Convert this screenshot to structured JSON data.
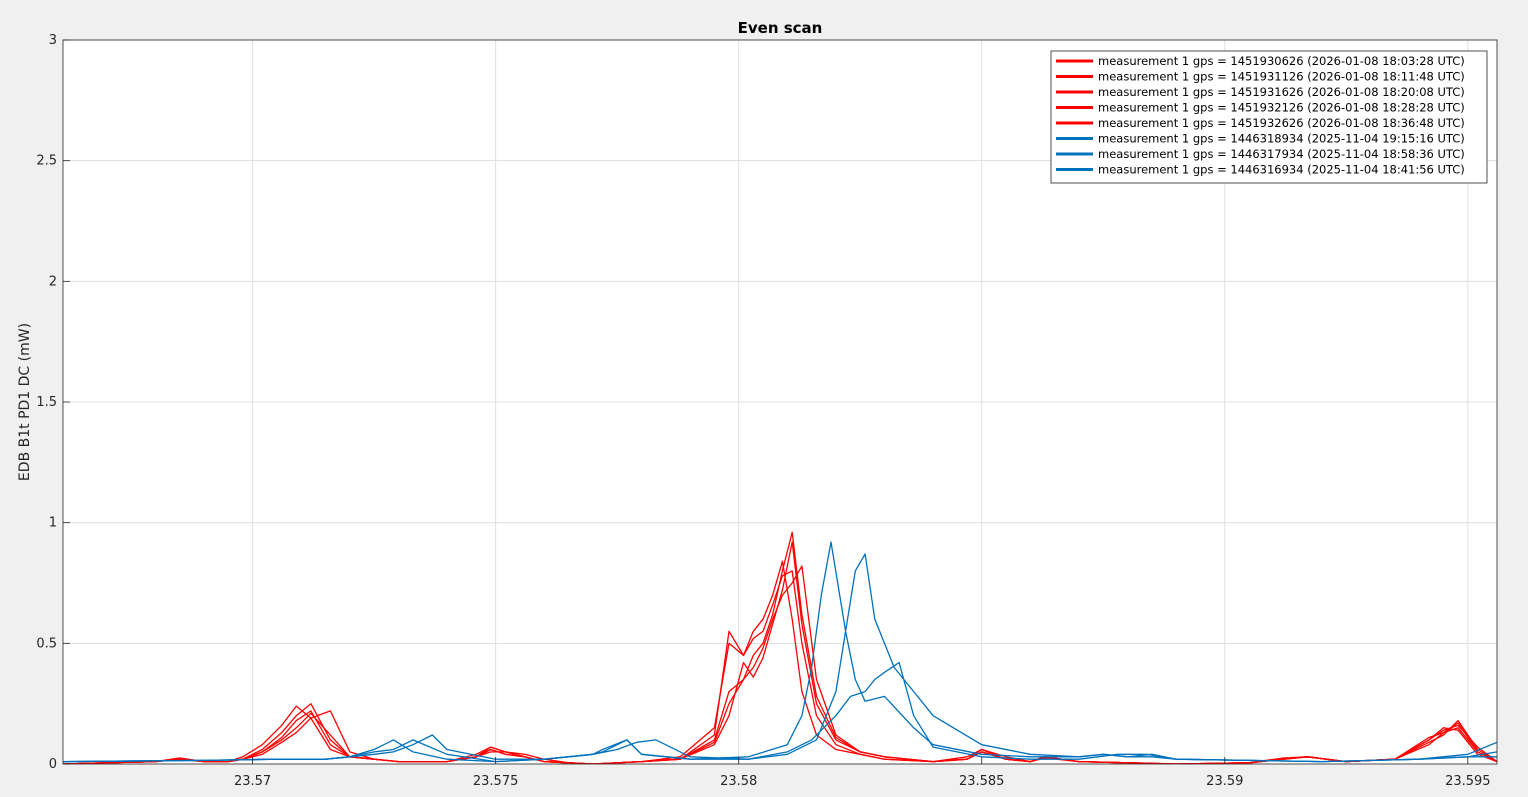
{
  "figure": {
    "background": "#f0f0f0",
    "axes_background": "#ffffff"
  },
  "chart_data": {
    "type": "line",
    "title": "Even scan",
    "xlabel": "",
    "ylabel": "EDB B1t PD1 DC (mW)",
    "xlim": [
      23.5661,
      23.5956
    ],
    "ylim": [
      0,
      3
    ],
    "xticks": [
      23.57,
      23.575,
      23.58,
      23.585,
      23.59,
      23.595
    ],
    "xtick_labels": [
      "23.57",
      "23.575",
      "23.58",
      "23.585",
      "23.59",
      "23.595"
    ],
    "yticks": [
      0,
      0.5,
      1,
      1.5,
      2,
      2.5,
      3
    ],
    "ytick_labels": [
      "0",
      "0.5",
      "1",
      "1.5",
      "2",
      "2.5",
      "3"
    ],
    "grid": true,
    "legend_position": "top-right",
    "series": [
      {
        "name": "measurement 1 gps = 1451930626 (2026-01-08 18:03:28 UTC)",
        "color": "#ff0000",
        "x": [
          23.5661,
          23.567,
          23.568,
          23.5685,
          23.569,
          23.5695,
          23.5698,
          23.5702,
          23.5706,
          23.5709,
          23.5712,
          23.5716,
          23.572,
          23.5725,
          23.573,
          23.574,
          23.5746,
          23.5749,
          23.5752,
          23.5756,
          23.576,
          23.5765,
          23.577,
          23.578,
          23.5788,
          23.5795,
          23.5798,
          23.5801,
          23.5803,
          23.5805,
          23.5807,
          23.5809,
          23.5811,
          23.5813,
          23.5816,
          23.582,
          23.5825,
          23.583,
          23.584,
          23.5847,
          23.585,
          23.5855,
          23.586,
          23.5863,
          23.587,
          23.588,
          23.589,
          23.5905,
          23.5912,
          23.5917,
          23.5925,
          23.5935,
          23.5942,
          23.5945,
          23.5948,
          23.5952,
          23.5956
        ],
        "y": [
          0,
          0.005,
          0.01,
          0.02,
          0.01,
          0.01,
          0.02,
          0.05,
          0.11,
          0.18,
          0.22,
          0.08,
          0.03,
          0.02,
          0.01,
          0.01,
          0.03,
          0.06,
          0.04,
          0.03,
          0.01,
          0.005,
          0,
          0.01,
          0.02,
          0.08,
          0.2,
          0.42,
          0.36,
          0.44,
          0.58,
          0.72,
          0.92,
          0.58,
          0.25,
          0.1,
          0.05,
          0.03,
          0.01,
          0.02,
          0.05,
          0.02,
          0.01,
          0.03,
          0.01,
          0.005,
          0,
          0.005,
          0.02,
          0.03,
          0.01,
          0.02,
          0.08,
          0.13,
          0.17,
          0.05,
          0.01
        ]
      },
      {
        "name": "measurement 1 gps = 1451931126 (2026-01-08 18:11:48 UTC)",
        "color": "#ff0000",
        "x": [
          23.5661,
          23.567,
          23.568,
          23.5685,
          23.569,
          23.5695,
          23.5698,
          23.5702,
          23.5706,
          23.5709,
          23.5712,
          23.5716,
          23.572,
          23.5725,
          23.573,
          23.574,
          23.5746,
          23.5749,
          23.5752,
          23.5756,
          23.576,
          23.5765,
          23.577,
          23.578,
          23.5788,
          23.5795,
          23.5798,
          23.5801,
          23.5803,
          23.5805,
          23.5807,
          23.5809,
          23.5811,
          23.5813,
          23.5816,
          23.582,
          23.5825,
          23.583,
          23.584,
          23.5847,
          23.585,
          23.5855,
          23.586,
          23.5863,
          23.587,
          23.588,
          23.589,
          23.5905,
          23.5912,
          23.5917,
          23.5925,
          23.5935,
          23.5942,
          23.5945,
          23.5948,
          23.5952,
          23.5956
        ],
        "y": [
          0,
          0.005,
          0.01,
          0.025,
          0.01,
          0.01,
          0.03,
          0.08,
          0.16,
          0.24,
          0.19,
          0.06,
          0.03,
          0.02,
          0.01,
          0.01,
          0.04,
          0.07,
          0.05,
          0.03,
          0.01,
          0.005,
          0,
          0.01,
          0.03,
          0.15,
          0.5,
          0.45,
          0.55,
          0.6,
          0.7,
          0.84,
          0.6,
          0.3,
          0.12,
          0.06,
          0.04,
          0.02,
          0.01,
          0.03,
          0.06,
          0.02,
          0.01,
          0.03,
          0.01,
          0.005,
          0,
          0.005,
          0.025,
          0.03,
          0.01,
          0.02,
          0.1,
          0.15,
          0.14,
          0.04,
          0.01
        ]
      },
      {
        "name": "measurement 1 gps = 1451931626 (2026-01-08 18:20:08 UTC)",
        "color": "#ff0000",
        "x": [
          23.5661,
          23.567,
          23.568,
          23.5685,
          23.569,
          23.5695,
          23.5698,
          23.5702,
          23.5706,
          23.5709,
          23.5712,
          23.5716,
          23.572,
          23.5725,
          23.573,
          23.574,
          23.5746,
          23.5749,
          23.5752,
          23.5756,
          23.576,
          23.5765,
          23.577,
          23.578,
          23.5788,
          23.5795,
          23.5798,
          23.5801,
          23.5803,
          23.5805,
          23.5807,
          23.5809,
          23.5811,
          23.5813,
          23.5816,
          23.582,
          23.5825,
          23.583,
          23.584,
          23.5847,
          23.585,
          23.5855,
          23.586,
          23.5863,
          23.587,
          23.588,
          23.589,
          23.5905,
          23.5912,
          23.5917,
          23.5925,
          23.5935,
          23.5942,
          23.5945,
          23.5948,
          23.5952,
          23.5956
        ],
        "y": [
          0,
          0.005,
          0.01,
          0.02,
          0.01,
          0.01,
          0.02,
          0.06,
          0.13,
          0.2,
          0.25,
          0.1,
          0.03,
          0.02,
          0.01,
          0.01,
          0.03,
          0.05,
          0.05,
          0.04,
          0.02,
          0.005,
          0,
          0.01,
          0.02,
          0.1,
          0.3,
          0.35,
          0.45,
          0.5,
          0.62,
          0.8,
          0.96,
          0.62,
          0.28,
          0.11,
          0.05,
          0.03,
          0.01,
          0.02,
          0.05,
          0.02,
          0.01,
          0.025,
          0.01,
          0.005,
          0,
          0.005,
          0.02,
          0.03,
          0.01,
          0.02,
          0.09,
          0.12,
          0.18,
          0.06,
          0.01
        ]
      },
      {
        "name": "measurement 1 gps = 1451932126 (2026-01-08 18:28:28 UTC)",
        "color": "#ff0000",
        "x": [
          23.5661,
          23.567,
          23.568,
          23.5685,
          23.569,
          23.5695,
          23.5698,
          23.5702,
          23.5706,
          23.5709,
          23.5712,
          23.5716,
          23.572,
          23.5725,
          23.573,
          23.574,
          23.5746,
          23.5749,
          23.5752,
          23.5756,
          23.576,
          23.5765,
          23.577,
          23.578,
          23.5788,
          23.5795,
          23.5798,
          23.5801,
          23.5803,
          23.5805,
          23.5807,
          23.5809,
          23.5811,
          23.5813,
          23.5816,
          23.582,
          23.5825,
          23.583,
          23.584,
          23.5847,
          23.585,
          23.5855,
          23.586,
          23.5863,
          23.587,
          23.588,
          23.589,
          23.5905,
          23.5912,
          23.5917,
          23.5925,
          23.5935,
          23.5942,
          23.5945,
          23.5948,
          23.5952,
          23.5956
        ],
        "y": [
          0,
          0.005,
          0.01,
          0.025,
          0.01,
          0.01,
          0.02,
          0.05,
          0.1,
          0.15,
          0.21,
          0.12,
          0.03,
          0.02,
          0.01,
          0.01,
          0.03,
          0.06,
          0.04,
          0.03,
          0.01,
          0.005,
          0,
          0.01,
          0.02,
          0.12,
          0.55,
          0.45,
          0.52,
          0.55,
          0.66,
          0.78,
          0.8,
          0.5,
          0.2,
          0.08,
          0.04,
          0.02,
          0.01,
          0.02,
          0.06,
          0.03,
          0.01,
          0.03,
          0.01,
          0.005,
          0,
          0.005,
          0.02,
          0.03,
          0.01,
          0.02,
          0.11,
          0.13,
          0.15,
          0.05,
          0.01
        ]
      },
      {
        "name": "measurement 1 gps = 1451932626 (2026-01-08 18:36:48 UTC)",
        "color": "#ff0000",
        "x": [
          23.5661,
          23.567,
          23.568,
          23.5685,
          23.569,
          23.5695,
          23.5698,
          23.5702,
          23.5706,
          23.5709,
          23.5712,
          23.5716,
          23.572,
          23.5725,
          23.573,
          23.574,
          23.5746,
          23.5749,
          23.5752,
          23.5756,
          23.576,
          23.5765,
          23.577,
          23.578,
          23.5788,
          23.5795,
          23.5798,
          23.5801,
          23.5803,
          23.5805,
          23.5807,
          23.5809,
          23.5811,
          23.5813,
          23.5816,
          23.582,
          23.5825,
          23.583,
          23.584,
          23.5847,
          23.585,
          23.5855,
          23.586,
          23.5863,
          23.587,
          23.588,
          23.589,
          23.5905,
          23.5912,
          23.5917,
          23.5925,
          23.5935,
          23.5942,
          23.5945,
          23.5948,
          23.5952,
          23.5956
        ],
        "y": [
          0,
          0.005,
          0.01,
          0.02,
          0.01,
          0.01,
          0.02,
          0.04,
          0.09,
          0.13,
          0.19,
          0.22,
          0.05,
          0.02,
          0.01,
          0.01,
          0.03,
          0.07,
          0.05,
          0.03,
          0.01,
          0.005,
          0,
          0.01,
          0.02,
          0.09,
          0.25,
          0.35,
          0.4,
          0.48,
          0.6,
          0.7,
          0.75,
          0.82,
          0.35,
          0.12,
          0.05,
          0.03,
          0.01,
          0.02,
          0.05,
          0.02,
          0.01,
          0.03,
          0.01,
          0.005,
          0,
          0.005,
          0.02,
          0.03,
          0.01,
          0.02,
          0.1,
          0.14,
          0.16,
          0.07,
          0.01
        ]
      },
      {
        "name": "measurement 1 gps = 1446318934 (2025-11-04 19:15:16 UTC)",
        "color": "#0072bd",
        "x": [
          23.5661,
          23.569,
          23.5705,
          23.5715,
          23.572,
          23.5725,
          23.5729,
          23.5733,
          23.574,
          23.575,
          23.576,
          23.5765,
          23.577,
          23.5725,
          23.5772,
          23.5777,
          23.578,
          23.579,
          23.5802,
          23.581,
          23.5816,
          23.582,
          23.5822,
          23.5824,
          23.5826,
          23.5828,
          23.5832,
          23.5836,
          23.584,
          23.585,
          23.586,
          23.587,
          23.5875,
          23.588,
          23.5885,
          23.589,
          23.592,
          23.594,
          23.595,
          23.5956
        ],
        "y": [
          0.01,
          0.015,
          0.02,
          0.02,
          0.03,
          0.06,
          0.1,
          0.05,
          0.02,
          0.01,
          0.02,
          0.03,
          0.04,
          0.06,
          0.06,
          0.1,
          0.04,
          0.02,
          0.02,
          0.04,
          0.1,
          0.3,
          0.55,
          0.8,
          0.87,
          0.6,
          0.4,
          0.3,
          0.2,
          0.08,
          0.04,
          0.03,
          0.04,
          0.03,
          0.04,
          0.02,
          0.01,
          0.02,
          0.04,
          0.09
        ]
      },
      {
        "name": "measurement 1 gps = 1446317934 (2025-11-04 18:58:36 UTC)",
        "color": "#0072bd",
        "x": [
          23.5661,
          23.569,
          23.5705,
          23.5715,
          23.572,
          23.5725,
          23.5729,
          23.5733,
          23.574,
          23.575,
          23.576,
          23.5765,
          23.577,
          23.5772,
          23.5777,
          23.578,
          23.579,
          23.5802,
          23.581,
          23.5813,
          23.5815,
          23.5817,
          23.5819,
          23.5822,
          23.5824,
          23.5826,
          23.583,
          23.5836,
          23.584,
          23.585,
          23.586,
          23.587,
          23.5875,
          23.588,
          23.5885,
          23.589,
          23.592,
          23.594,
          23.595,
          23.5956
        ],
        "y": [
          0.01,
          0.015,
          0.02,
          0.02,
          0.03,
          0.05,
          0.06,
          0.1,
          0.04,
          0.01,
          0.02,
          0.03,
          0.04,
          0.05,
          0.1,
          0.04,
          0.02,
          0.03,
          0.08,
          0.2,
          0.4,
          0.7,
          0.92,
          0.55,
          0.35,
          0.26,
          0.28,
          0.15,
          0.08,
          0.04,
          0.03,
          0.03,
          0.04,
          0.03,
          0.03,
          0.02,
          0.01,
          0.02,
          0.03,
          0.05
        ]
      },
      {
        "name": "measurement 1 gps = 1446316934 (2025-11-04 18:41:56 UTC)",
        "color": "#0072bd",
        "x": [
          23.5661,
          23.569,
          23.5705,
          23.5715,
          23.572,
          23.5725,
          23.5729,
          23.5733,
          23.5737,
          23.574,
          23.575,
          23.576,
          23.5765,
          23.577,
          23.5775,
          23.5779,
          23.5783,
          23.579,
          23.5802,
          23.581,
          23.5815,
          23.582,
          23.5823,
          23.5826,
          23.5828,
          23.583,
          23.5833,
          23.5836,
          23.584,
          23.585,
          23.586,
          23.587,
          23.5878,
          23.5884,
          23.589,
          23.592,
          23.594,
          23.595,
          23.5956
        ],
        "y": [
          0.01,
          0.015,
          0.02,
          0.02,
          0.03,
          0.04,
          0.05,
          0.08,
          0.12,
          0.06,
          0.02,
          0.02,
          0.03,
          0.04,
          0.06,
          0.09,
          0.1,
          0.03,
          0.02,
          0.05,
          0.1,
          0.2,
          0.28,
          0.3,
          0.35,
          0.38,
          0.42,
          0.2,
          0.07,
          0.03,
          0.02,
          0.02,
          0.04,
          0.04,
          0.02,
          0.01,
          0.02,
          0.03,
          0.03
        ]
      }
    ]
  }
}
